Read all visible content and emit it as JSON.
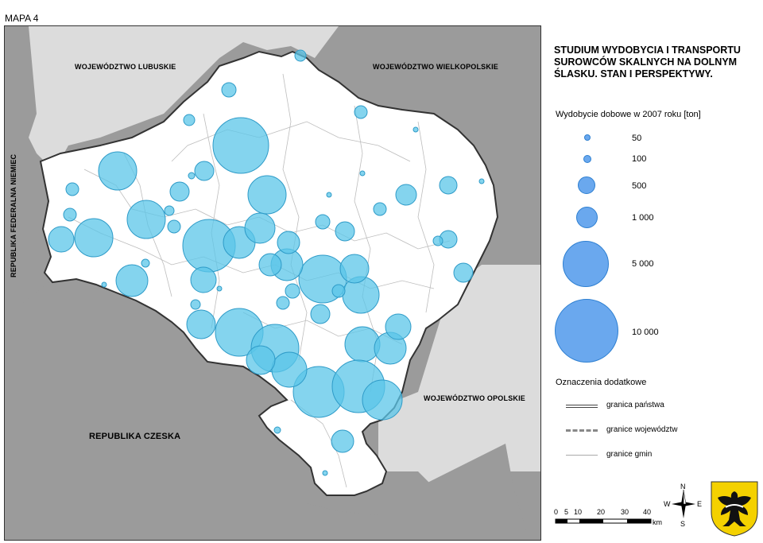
{
  "map_label": "MAPA 4",
  "title": "STUDIUM WYDOBYCIA I TRANSPORTU SUROWCÓW SKALNYCH NA DOLNYM ŚLASKU. STAN I PERSPEKTYWY.",
  "regions": {
    "lubuskie": "WOJEWÓDZTWO LUBUSKIE",
    "wielkopolskie": "WOJEWÓDZTWO WIELKOPOLSKIE",
    "opolskie": "WOJEWÓDZTWO OPOLSKIE",
    "niemcy": "REPUBLIKA FEDERALNA NIEMIEC",
    "czechy": "REPUBLIKA CZESKA"
  },
  "legend": {
    "heading": "Wydobycie dobowe w 2007 roku [ton]",
    "sizes": [
      {
        "label": "50",
        "value": 50
      },
      {
        "label": "100",
        "value": 100
      },
      {
        "label": "500",
        "value": 500
      },
      {
        "label": "1 000",
        "value": 1000
      },
      {
        "label": "5 000",
        "value": 5000
      },
      {
        "label": "10 000",
        "value": 10000
      }
    ],
    "extra_heading": "Oznaczenia dodatkowe",
    "lines": [
      {
        "label": "granica państwa"
      },
      {
        "label": "granice województw"
      },
      {
        "label": "granice gmin"
      }
    ]
  },
  "scale": {
    "ticks": [
      "0",
      "5",
      "10",
      "20",
      "30",
      "40"
    ],
    "unit": "km"
  },
  "compass": {
    "n": "N",
    "s": "S",
    "e": "E",
    "w": "W"
  },
  "colors": {
    "foreign": "#9b9b9b",
    "neighbor": "#dcdcdc",
    "region": "#ffffff",
    "bubble_map": "#5bc5e8",
    "bubble_legend": "#6aa8ee"
  },
  "icons": [
    "compass-rose-icon",
    "coat-of-arms-eagle-icon"
  ]
}
